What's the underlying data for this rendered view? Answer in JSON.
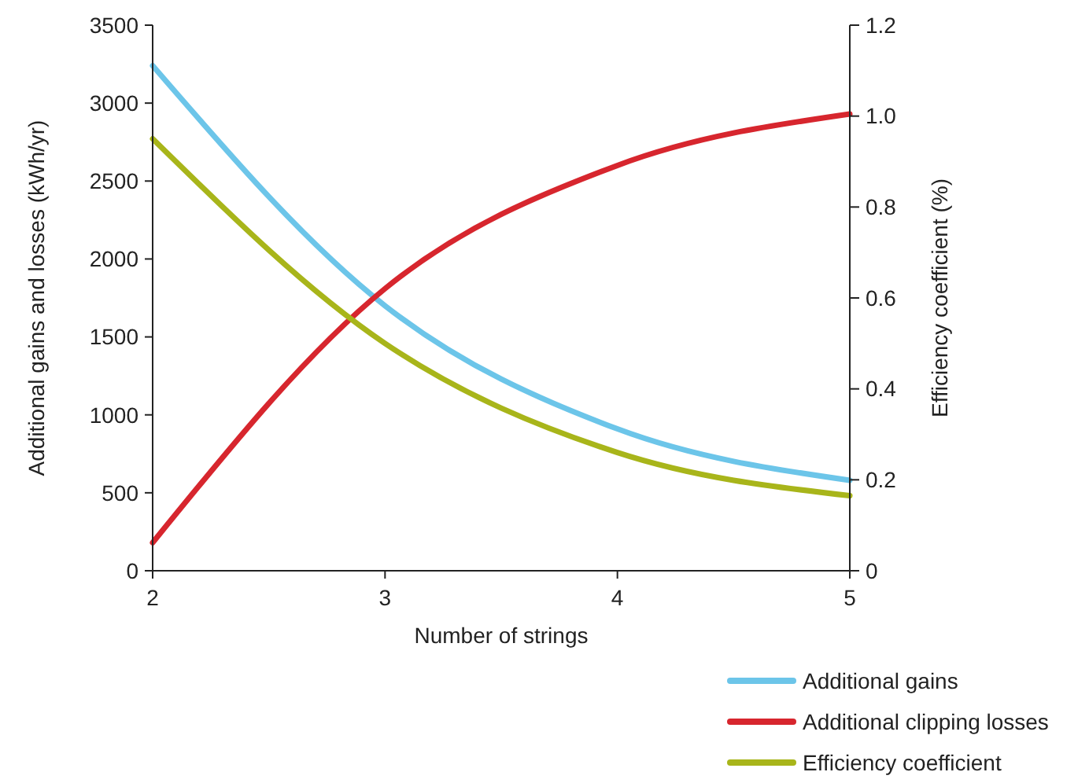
{
  "chart_data": {
    "type": "line",
    "xlabel": "Number of strings",
    "ylabel": "Additional gains and losses (kWh/yr)",
    "y2label": "Efficiency coefficient (%)",
    "x": [
      2,
      3,
      4,
      5
    ],
    "xlim": [
      2,
      5
    ],
    "xticks": [
      2,
      3,
      4,
      5
    ],
    "ylim": [
      0,
      3500
    ],
    "yticks": [
      0,
      500,
      1000,
      1500,
      2000,
      2500,
      3000,
      3500
    ],
    "y2lim": [
      0,
      1.2
    ],
    "y2ticks": [
      0,
      {
        "value": 0.2,
        "label": "0.2"
      },
      {
        "value": 0.4,
        "label": "0.4"
      },
      {
        "value": 0.6,
        "label": "0.6"
      },
      {
        "value": 0.8,
        "label": "0.8"
      },
      {
        "value": 1,
        "label": "1.0"
      },
      {
        "value": 1.2,
        "label": "1.2"
      }
    ],
    "grid": false,
    "legend": "bottom right",
    "marker": "none",
    "line_style": "solid",
    "series": [
      {
        "name": "Additional gains",
        "color": "#6cc5e9",
        "values": [
          3240,
          1700,
          910,
          580
        ]
      },
      {
        "name": "Additional clipping losses",
        "color": "#d7262e",
        "values": [
          180,
          1810,
          2600,
          2930
        ]
      },
      {
        "name": "Efficiency coefficient",
        "color": "#a8b51a",
        "axis": "y2",
        "values": [
          0.95,
          0.5,
          0.26,
          0.165
        ]
      }
    ]
  }
}
